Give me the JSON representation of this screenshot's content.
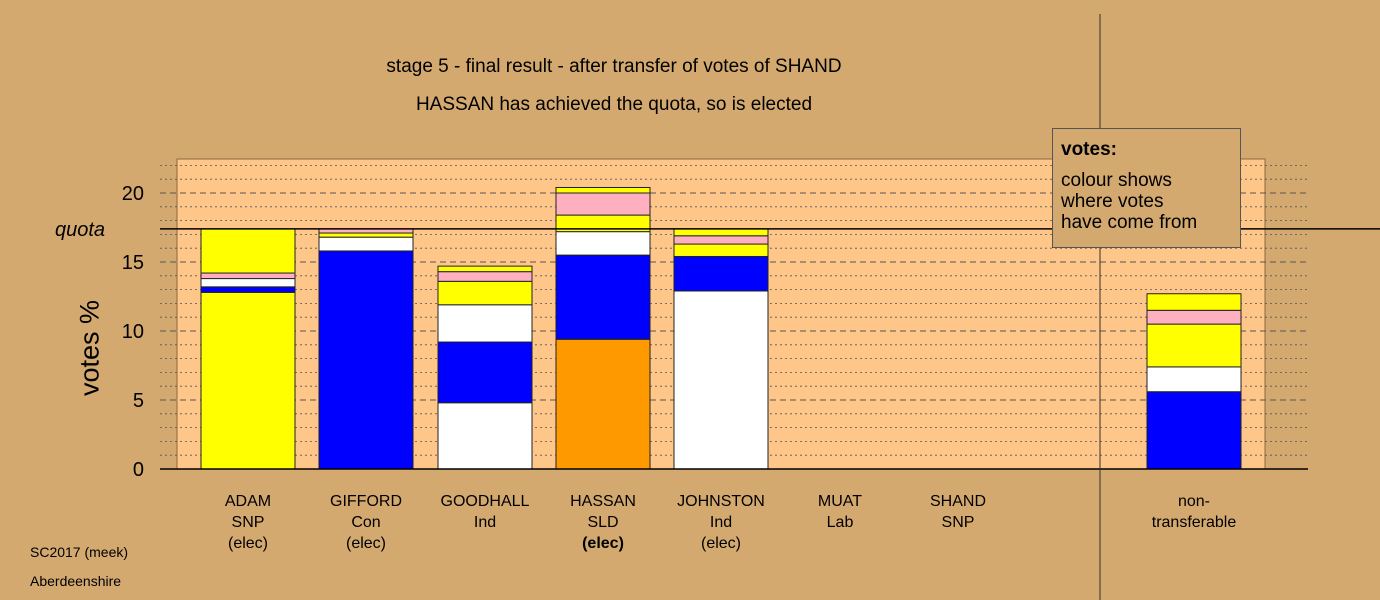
{
  "title": "stage 5 - final result - after transfer of votes of SHAND",
  "subtitle": "HASSAN has achieved the quota, so is elected",
  "legend": {
    "heading": "votes:",
    "lines": [
      "colour shows",
      "where votes",
      "have come from"
    ]
  },
  "footer": {
    "election": "SC2017 (meek)",
    "council": "Aberdeenshire"
  },
  "colors": {
    "background": "#d4a970",
    "plot_background": "#fec689",
    "SNP": "#ffff00",
    "Con": "#0000ff",
    "Ind": "#ffffff",
    "SLD": "#ff9900",
    "Lab": "#ffb0c0"
  },
  "chart_data": {
    "type": "bar",
    "stacked": true,
    "ylabel": "votes %",
    "ylim": [
      0,
      22.5
    ],
    "yticks": [
      0,
      5,
      10,
      15,
      20
    ],
    "quota": 17.4,
    "quota_label": "quota",
    "grid": "dashed every 5, dotted every 1",
    "candidates": [
      {
        "name": "ADAM",
        "party": "SNP",
        "status": "(elec)",
        "status_bold": false,
        "segments": [
          {
            "from": "SNP",
            "value": 12.8
          },
          {
            "from": "Con",
            "value": 0.4
          },
          {
            "from": "Ind",
            "value": 0.6
          },
          {
            "from": "Lab",
            "value": 0.4
          },
          {
            "from": "SNP",
            "value": 3.2
          }
        ]
      },
      {
        "name": "GIFFORD",
        "party": "Con",
        "status": "(elec)",
        "status_bold": false,
        "segments": [
          {
            "from": "Con",
            "value": 15.8
          },
          {
            "from": "Ind",
            "value": 1.0
          },
          {
            "from": "SNP",
            "value": 0.3
          },
          {
            "from": "Lab",
            "value": 0.3
          }
        ]
      },
      {
        "name": "GOODHALL",
        "party": "Ind",
        "status": "",
        "status_bold": false,
        "segments": [
          {
            "from": "Ind",
            "value": 4.8
          },
          {
            "from": "Con",
            "value": 4.4
          },
          {
            "from": "Ind",
            "value": 2.7
          },
          {
            "from": "SNP",
            "value": 1.7
          },
          {
            "from": "Lab",
            "value": 0.7
          },
          {
            "from": "SNP",
            "value": 0.4
          }
        ]
      },
      {
        "name": "HASSAN",
        "party": "SLD",
        "status": "(elec)",
        "status_bold": true,
        "segments": [
          {
            "from": "SLD",
            "value": 9.4
          },
          {
            "from": "Con",
            "value": 6.1
          },
          {
            "from": "Ind",
            "value": 1.7
          },
          {
            "from": "SNP",
            "value": 1.2
          },
          {
            "from": "Lab",
            "value": 1.6
          },
          {
            "from": "SNP",
            "value": 0.4
          }
        ]
      },
      {
        "name": "JOHNSTON",
        "party": "Ind",
        "status": "(elec)",
        "status_bold": false,
        "segments": [
          {
            "from": "Ind",
            "value": 12.9
          },
          {
            "from": "Con",
            "value": 2.5
          },
          {
            "from": "SNP",
            "value": 0.9
          },
          {
            "from": "Lab",
            "value": 0.6
          },
          {
            "from": "SNP",
            "value": 0.5
          }
        ]
      },
      {
        "name": "MUAT",
        "party": "Lab",
        "status": "",
        "status_bold": false,
        "segments": []
      },
      {
        "name": "SHAND",
        "party": "SNP",
        "status": "",
        "status_bold": false,
        "segments": []
      }
    ],
    "nontransferable": {
      "label_lines": [
        "non-",
        "transferable"
      ],
      "segments": [
        {
          "from": "Con",
          "value": 5.6
        },
        {
          "from": "Ind",
          "value": 1.8
        },
        {
          "from": "SNP",
          "value": 3.1
        },
        {
          "from": "Lab",
          "value": 1.0
        },
        {
          "from": "SNP",
          "value": 1.2
        }
      ]
    }
  }
}
